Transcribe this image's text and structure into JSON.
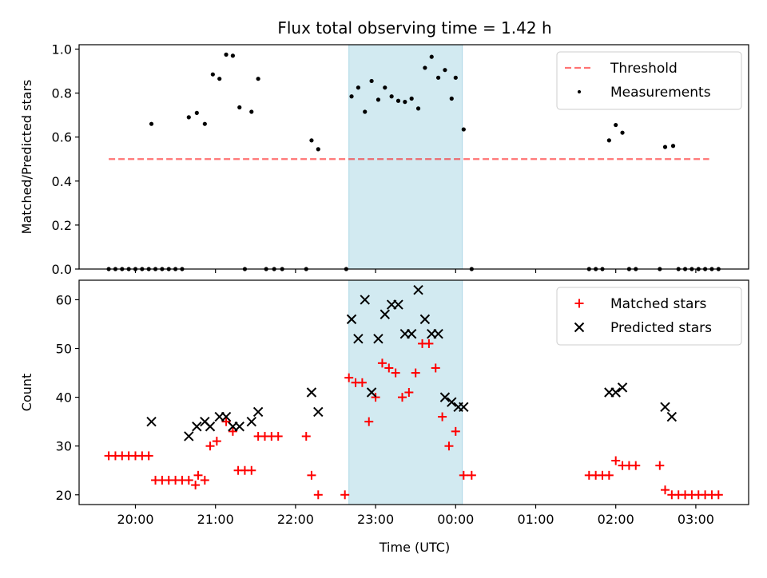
{
  "chart_data": {
    "type": "scatter",
    "title": "Flux total observing time = 1.42 h",
    "xlabel": "Time (UTC)",
    "x_tick_labels": [
      "20:00",
      "21:00",
      "22:00",
      "23:00",
      "00:00",
      "01:00",
      "02:00",
      "03:00"
    ],
    "highlight_span": {
      "start": "22:40",
      "end": "00:05",
      "color": "#add8e6"
    },
    "panels": [
      {
        "ylabel": "Matched/Predicted stars",
        "ylim": [
          0,
          1.02
        ],
        "y_ticks": [
          0.0,
          0.2,
          0.4,
          0.6,
          0.8,
          1.0
        ],
        "y_tick_labels": [
          "0.0",
          "0.2",
          "0.4",
          "0.6",
          "0.8",
          "1.0"
        ],
        "legend_position": "top-right",
        "threshold": {
          "name": "Threshold",
          "value": 0.5,
          "x_start": "19:40",
          "x_end": "03:10",
          "color": "#ff0000"
        },
        "series": [
          {
            "name": "Measurements",
            "marker": "dot",
            "color": "#000000",
            "points": [
              [
                "19:40",
                0
              ],
              [
                "19:45",
                0
              ],
              [
                "19:50",
                0
              ],
              [
                "19:55",
                0
              ],
              [
                "20:00",
                0
              ],
              [
                "20:05",
                0
              ],
              [
                "20:10",
                0
              ],
              [
                "20:12",
                0.66
              ],
              [
                "20:15",
                0
              ],
              [
                "20:20",
                0
              ],
              [
                "20:25",
                0
              ],
              [
                "20:30",
                0
              ],
              [
                "20:35",
                0
              ],
              [
                "20:40",
                0.69
              ],
              [
                "20:46",
                0.71
              ],
              [
                "20:52",
                0.66
              ],
              [
                "20:58",
                0.885
              ],
              [
                "21:03",
                0.865
              ],
              [
                "21:08",
                0.975
              ],
              [
                "21:13",
                0.97
              ],
              [
                "21:18",
                0.735
              ],
              [
                "21:22",
                0
              ],
              [
                "21:27",
                0.715
              ],
              [
                "21:32",
                0.865
              ],
              [
                "21:38",
                0
              ],
              [
                "21:44",
                0
              ],
              [
                "21:50",
                0
              ],
              [
                "22:08",
                0
              ],
              [
                "22:12",
                0.585
              ],
              [
                "22:17",
                0.545
              ],
              [
                "22:38",
                0
              ],
              [
                "22:42",
                0.785
              ],
              [
                "22:47",
                0.825
              ],
              [
                "22:52",
                0.715
              ],
              [
                "22:57",
                0.855
              ],
              [
                "23:02",
                0.77
              ],
              [
                "23:07",
                0.825
              ],
              [
                "23:12",
                0.785
              ],
              [
                "23:17",
                0.765
              ],
              [
                "23:22",
                0.76
              ],
              [
                "23:27",
                0.775
              ],
              [
                "23:32",
                0.73
              ],
              [
                "23:37",
                0.915
              ],
              [
                "23:42",
                0.965
              ],
              [
                "23:47",
                0.87
              ],
              [
                "23:52",
                0.905
              ],
              [
                "23:57",
                0.775
              ],
              [
                "00:00",
                0.87
              ],
              [
                "00:06",
                0.635
              ],
              [
                "00:12",
                0
              ],
              [
                "01:40",
                0
              ],
              [
                "01:45",
                0
              ],
              [
                "01:50",
                0
              ],
              [
                "01:55",
                0.585
              ],
              [
                "02:00",
                0.655
              ],
              [
                "02:05",
                0.62
              ],
              [
                "02:10",
                0
              ],
              [
                "02:15",
                0
              ],
              [
                "02:33",
                0
              ],
              [
                "02:37",
                0.555
              ],
              [
                "02:43",
                0.56
              ],
              [
                "02:47",
                0
              ],
              [
                "02:52",
                0
              ],
              [
                "02:57",
                0
              ],
              [
                "03:02",
                0
              ],
              [
                "03:07",
                0
              ],
              [
                "03:12",
                0
              ],
              [
                "03:17",
                0
              ]
            ]
          }
        ]
      },
      {
        "ylabel": "Count",
        "ylim": [
          18,
          64
        ],
        "y_ticks": [
          20,
          30,
          40,
          50,
          60
        ],
        "y_tick_labels": [
          "20",
          "30",
          "40",
          "50",
          "60"
        ],
        "legend_position": "top-right",
        "series": [
          {
            "name": "Matched stars",
            "marker": "plus",
            "color": "#ff0000",
            "points": [
              [
                "19:40",
                28
              ],
              [
                "19:45",
                28
              ],
              [
                "19:50",
                28
              ],
              [
                "19:55",
                28
              ],
              [
                "20:00",
                28
              ],
              [
                "20:05",
                28
              ],
              [
                "20:10",
                28
              ],
              [
                "20:15",
                23
              ],
              [
                "20:20",
                23
              ],
              [
                "20:25",
                23
              ],
              [
                "20:30",
                23
              ],
              [
                "20:35",
                23
              ],
              [
                "20:40",
                23
              ],
              [
                "20:45",
                22
              ],
              [
                "20:47",
                24
              ],
              [
                "20:52",
                23
              ],
              [
                "20:56",
                30
              ],
              [
                "21:01",
                31
              ],
              [
                "21:08",
                35
              ],
              [
                "21:13",
                33
              ],
              [
                "21:17",
                25
              ],
              [
                "21:22",
                25
              ],
              [
                "21:27",
                25
              ],
              [
                "21:32",
                32
              ],
              [
                "21:37",
                32
              ],
              [
                "21:42",
                32
              ],
              [
                "21:47",
                32
              ],
              [
                "22:08",
                32
              ],
              [
                "22:12",
                24
              ],
              [
                "22:17",
                20
              ],
              [
                "22:37",
                20
              ],
              [
                "22:40",
                44
              ],
              [
                "22:45",
                43
              ],
              [
                "22:50",
                43
              ],
              [
                "22:55",
                35
              ],
              [
                "23:00",
                40
              ],
              [
                "23:05",
                47
              ],
              [
                "23:10",
                46
              ],
              [
                "23:15",
                45
              ],
              [
                "23:20",
                40
              ],
              [
                "23:25",
                41
              ],
              [
                "23:30",
                45
              ],
              [
                "23:35",
                51
              ],
              [
                "23:40",
                51
              ],
              [
                "23:45",
                46
              ],
              [
                "23:50",
                36
              ],
              [
                "23:55",
                30
              ],
              [
                "00:00",
                33
              ],
              [
                "00:06",
                24
              ],
              [
                "00:12",
                24
              ],
              [
                "01:40",
                24
              ],
              [
                "01:45",
                24
              ],
              [
                "01:50",
                24
              ],
              [
                "01:55",
                24
              ],
              [
                "02:00",
                27
              ],
              [
                "02:05",
                26
              ],
              [
                "02:10",
                26
              ],
              [
                "02:15",
                26
              ],
              [
                "02:33",
                26
              ],
              [
                "02:37",
                21
              ],
              [
                "02:42",
                20
              ],
              [
                "02:47",
                20
              ],
              [
                "02:52",
                20
              ],
              [
                "02:57",
                20
              ],
              [
                "03:02",
                20
              ],
              [
                "03:07",
                20
              ],
              [
                "03:12",
                20
              ],
              [
                "03:17",
                20
              ]
            ]
          },
          {
            "name": "Predicted stars",
            "marker": "x",
            "color": "#000000",
            "points": [
              [
                "20:12",
                35
              ],
              [
                "20:40",
                32
              ],
              [
                "20:46",
                34
              ],
              [
                "20:52",
                35
              ],
              [
                "20:56",
                34
              ],
              [
                "21:03",
                36
              ],
              [
                "21:08",
                36
              ],
              [
                "21:13",
                34
              ],
              [
                "21:18",
                34
              ],
              [
                "21:27",
                35
              ],
              [
                "21:32",
                37
              ],
              [
                "22:12",
                41
              ],
              [
                "22:17",
                37
              ],
              [
                "22:42",
                56
              ],
              [
                "22:47",
                52
              ],
              [
                "22:52",
                60
              ],
              [
                "22:57",
                41
              ],
              [
                "23:02",
                52
              ],
              [
                "23:07",
                57
              ],
              [
                "23:12",
                59
              ],
              [
                "23:17",
                59
              ],
              [
                "23:22",
                53
              ],
              [
                "23:27",
                53
              ],
              [
                "23:32",
                62
              ],
              [
                "23:37",
                56
              ],
              [
                "23:42",
                53
              ],
              [
                "23:47",
                53
              ],
              [
                "23:52",
                40
              ],
              [
                "23:57",
                39
              ],
              [
                "00:02",
                38
              ],
              [
                "00:06",
                38
              ],
              [
                "01:55",
                41
              ],
              [
                "02:00",
                41
              ],
              [
                "02:05",
                42
              ],
              [
                "02:37",
                38
              ],
              [
                "02:42",
                36
              ]
            ]
          }
        ]
      }
    ]
  }
}
